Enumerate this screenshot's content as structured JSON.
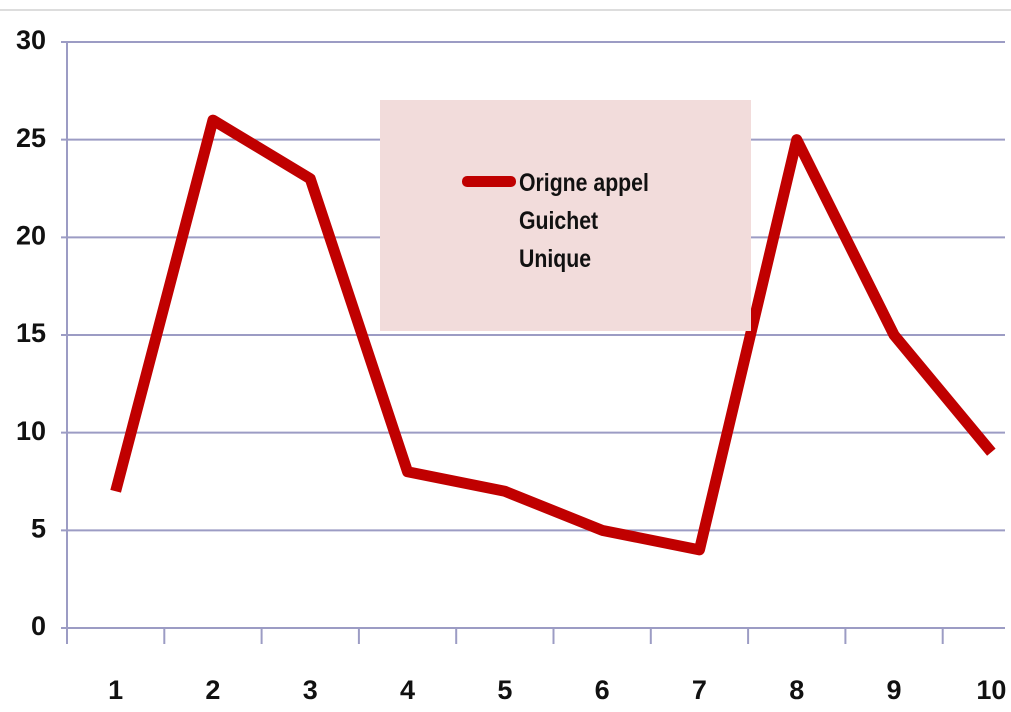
{
  "chart_data": {
    "type": "line",
    "categories": [
      "1",
      "2",
      "3",
      "4",
      "5",
      "6",
      "7",
      "8",
      "9",
      "10"
    ],
    "series": [
      {
        "name": "Origne appel Guichet Unique",
        "color": "#c00000",
        "values": [
          7,
          26,
          23,
          8,
          7,
          5,
          4,
          25,
          15,
          9
        ]
      }
    ],
    "ylim": [
      0,
      30
    ],
    "yticks": [
      0,
      5,
      10,
      15,
      20,
      25,
      30
    ],
    "grid": true,
    "legend": "top-center"
  }
}
